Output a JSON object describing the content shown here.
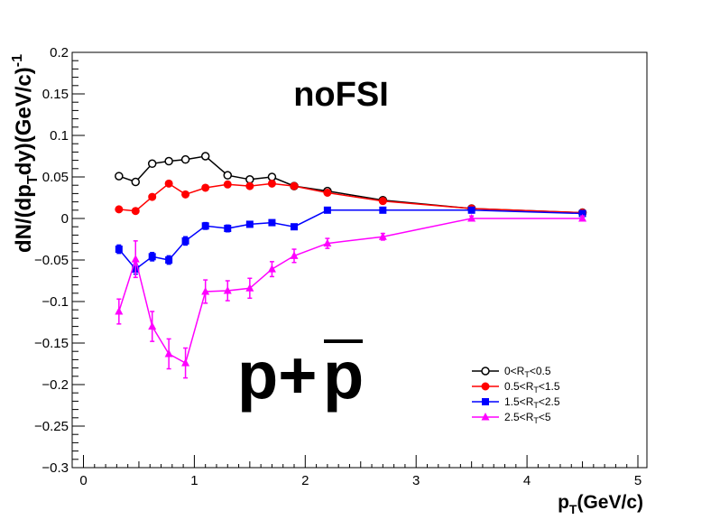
{
  "chart_data": {
    "type": "line",
    "title": "noFSI",
    "annotation": "p+p̄",
    "annotation_parts": {
      "left": "p+",
      "right": "p"
    },
    "xlabel": {
      "main": "p",
      "sub": "T",
      "rest": "(GeV/c)"
    },
    "ylabel": {
      "a": "dN/(dp",
      "sub": "T",
      "b": "dy)(GeV/c)",
      "sup": "-1"
    },
    "xlim": [
      0,
      5
    ],
    "ylim": [
      -0.3,
      0.2
    ],
    "x_ticks": [
      {
        "v": 0,
        "label": "0"
      },
      {
        "v": 1,
        "label": "1"
      },
      {
        "v": 2,
        "label": "2"
      },
      {
        "v": 3,
        "label": "3"
      },
      {
        "v": 4,
        "label": "4"
      },
      {
        "v": 5,
        "label": "5"
      }
    ],
    "y_ticks": [
      {
        "v": 0.2,
        "label": "0.2"
      },
      {
        "v": 0.15,
        "label": "0.15"
      },
      {
        "v": 0.1,
        "label": "0.1"
      },
      {
        "v": 0.05,
        "label": "0.05"
      },
      {
        "v": 0,
        "label": "0"
      },
      {
        "v": -0.05,
        "label": "−0.05"
      },
      {
        "v": -0.1,
        "label": "−0.1"
      },
      {
        "v": -0.15,
        "label": "−0.15"
      },
      {
        "v": -0.2,
        "label": "−0.2"
      },
      {
        "v": -0.25,
        "label": "−0.25"
      },
      {
        "v": -0.3,
        "label": "−0.3"
      }
    ],
    "legend_position": "bottom-right",
    "series": [
      {
        "name": "0<RT<0.5",
        "legend": {
          "a": "0<R",
          "sub": "T",
          "b": "<0.5"
        },
        "color": "#000000",
        "marker": "open-circle",
        "x": [
          0.32,
          0.47,
          0.62,
          0.77,
          0.92,
          1.1,
          1.3,
          1.5,
          1.7,
          1.9,
          2.2,
          2.7,
          3.5,
          4.5
        ],
        "y": [
          0.051,
          0.044,
          0.066,
          0.069,
          0.071,
          0.075,
          0.052,
          0.047,
          0.05,
          0.039,
          0.033,
          0.022,
          0.012,
          0.007
        ],
        "err": [
          0.003,
          0.003,
          0.003,
          0.003,
          0.003,
          0.003,
          0.003,
          0.002,
          0.002,
          0.002,
          0.002,
          0.001,
          0.001,
          0.001
        ]
      },
      {
        "name": "0.5<RT<1.5",
        "legend": {
          "a": "0.5<R",
          "sub": "T",
          "b": "<1.5"
        },
        "color": "#ff0000",
        "marker": "filled-circle",
        "x": [
          0.32,
          0.47,
          0.62,
          0.77,
          0.92,
          1.1,
          1.3,
          1.5,
          1.7,
          1.9,
          2.2,
          2.7,
          3.5,
          4.5
        ],
        "y": [
          0.011,
          0.009,
          0.026,
          0.042,
          0.029,
          0.037,
          0.041,
          0.039,
          0.042,
          0.039,
          0.031,
          0.021,
          0.012,
          0.007
        ],
        "err": [
          0.002,
          0.002,
          0.002,
          0.003,
          0.002,
          0.002,
          0.002,
          0.002,
          0.002,
          0.002,
          0.002,
          0.001,
          0.001,
          0.001
        ]
      },
      {
        "name": "1.5<RT<2.5",
        "legend": {
          "a": "1.5<R",
          "sub": "T",
          "b": "<2.5"
        },
        "color": "#0000ff",
        "marker": "filled-square",
        "x": [
          0.32,
          0.47,
          0.62,
          0.77,
          0.92,
          1.1,
          1.3,
          1.5,
          1.7,
          1.9,
          2.2,
          2.7,
          3.5,
          4.5
        ],
        "y": [
          -0.037,
          -0.061,
          -0.046,
          -0.05,
          -0.027,
          -0.009,
          -0.012,
          -0.007,
          -0.005,
          -0.01,
          0.01,
          0.01,
          0.01,
          0.006
        ],
        "err": [
          0.005,
          0.006,
          0.005,
          0.005,
          0.005,
          0.004,
          0.004,
          0.003,
          0.003,
          0.003,
          0.002,
          0.002,
          0.002,
          0.002
        ]
      },
      {
        "name": "2.5<RT<5",
        "legend": {
          "a": "2.5<R",
          "sub": "T",
          "b": "<5"
        },
        "color": "#ff00ff",
        "marker": "filled-triangle",
        "x": [
          0.32,
          0.47,
          0.62,
          0.77,
          0.92,
          1.1,
          1.3,
          1.5,
          1.7,
          1.9,
          2.2,
          2.7,
          3.5,
          4.5
        ],
        "y": [
          -0.112,
          -0.049,
          -0.13,
          -0.163,
          -0.174,
          -0.088,
          -0.087,
          -0.084,
          -0.061,
          -0.045,
          -0.03,
          -0.022,
          0.0,
          0.0
        ],
        "err": [
          0.015,
          0.022,
          0.018,
          0.018,
          0.018,
          0.014,
          0.012,
          0.012,
          0.009,
          0.008,
          0.006,
          0.004,
          0.003,
          0.003
        ]
      }
    ]
  }
}
